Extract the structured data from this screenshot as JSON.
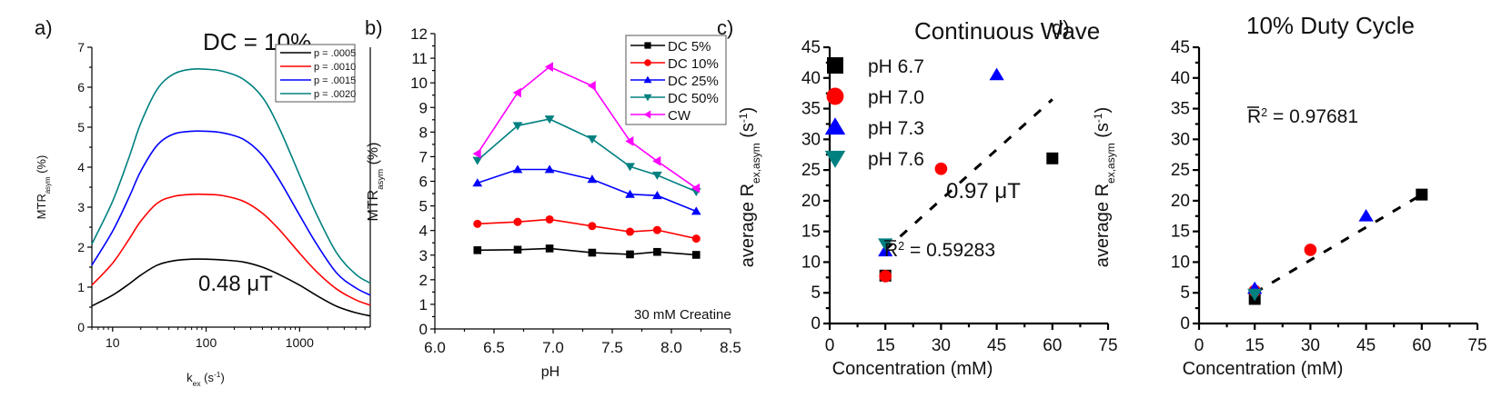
{
  "chart_data": [
    {
      "id": "a",
      "panel_label": "a)",
      "type": "line",
      "title": "DC = 10%",
      "xlabel": "k_ex (s^-1)",
      "xlabel_main": "k",
      "xlabel_sub": "ex",
      "xlabel_rest": " (s",
      "xlabel_sup": "-1",
      "xlabel_end": ")",
      "ylabel_main": "MTR",
      "ylabel_sub": "asym",
      "ylabel_rest": " (%)",
      "xscale": "log",
      "xlim": [
        6,
        5700
      ],
      "ylim": [
        0,
        7
      ],
      "xticks": [
        10,
        100,
        1000
      ],
      "xtick_labels": [
        "10",
        "100",
        "1000"
      ],
      "yticks": [
        0,
        1,
        2,
        3,
        4,
        5,
        6,
        7
      ],
      "ytick_labels": [
        "0",
        "1",
        "2",
        "3",
        "4",
        "5",
        "6",
        "7"
      ],
      "annotation": "0.48 μT",
      "legend_position": "top-right",
      "x": [
        6,
        10,
        15,
        20,
        30,
        45,
        70,
        100,
        150,
        250,
        400,
        600,
        1000,
        1500,
        2500,
        4000,
        5700
      ],
      "series": [
        {
          "name": "p = .0005",
          "color": "#000000",
          "values": [
            0.53,
            0.8,
            1.08,
            1.3,
            1.55,
            1.66,
            1.7,
            1.7,
            1.68,
            1.63,
            1.5,
            1.32,
            1.05,
            0.8,
            0.52,
            0.36,
            0.28
          ]
        },
        {
          "name": "p = .0010",
          "color": "#ff0000",
          "values": [
            1.05,
            1.6,
            2.2,
            2.65,
            3.1,
            3.27,
            3.32,
            3.32,
            3.29,
            3.15,
            2.85,
            2.45,
            1.85,
            1.4,
            0.95,
            0.68,
            0.55
          ]
        },
        {
          "name": "p = .0015",
          "color": "#0000ff",
          "values": [
            1.55,
            2.4,
            3.25,
            3.9,
            4.55,
            4.83,
            4.9,
            4.9,
            4.86,
            4.7,
            4.3,
            3.7,
            2.8,
            2.1,
            1.35,
            0.98,
            0.8
          ]
        },
        {
          "name": "p = .0020",
          "color": "#008080",
          "values": [
            2.08,
            3.15,
            4.25,
            5.1,
            5.95,
            6.33,
            6.45,
            6.45,
            6.4,
            6.2,
            5.75,
            5.0,
            3.8,
            2.85,
            1.85,
            1.32,
            1.1
          ]
        }
      ]
    },
    {
      "id": "b",
      "panel_label": "b)",
      "type": "line",
      "title": "",
      "xlabel": "pH",
      "ylabel_main": "MTR",
      "ylabel_sub": "asym",
      "ylabel_rest": " (%)",
      "xlim": [
        6.0,
        8.5
      ],
      "ylim": [
        0,
        12
      ],
      "xticks": [
        6.0,
        6.5,
        7.0,
        7.5,
        8.0,
        8.5
      ],
      "xtick_labels": [
        "6.0",
        "6.5",
        "7.0",
        "7.5",
        "8.0",
        "8.5"
      ],
      "yticks": [
        0,
        1,
        2,
        3,
        4,
        5,
        6,
        7,
        8,
        9,
        10,
        11,
        12
      ],
      "ytick_labels": [
        "0",
        "1",
        "2",
        "3",
        "4",
        "5",
        "6",
        "7",
        "8",
        "9",
        "10",
        "11",
        "12"
      ],
      "annotation": "30 mM Creatine",
      "legend_position": "top-right",
      "x": [
        6.36,
        6.7,
        6.97,
        7.33,
        7.65,
        7.88,
        8.21
      ],
      "series": [
        {
          "name": "DC 5%",
          "color": "#000000",
          "marker": "square",
          "values": [
            3.2,
            3.22,
            3.27,
            3.1,
            3.03,
            3.13,
            3.01
          ]
        },
        {
          "name": "DC 10%",
          "color": "#ff0000",
          "marker": "circle",
          "values": [
            4.27,
            4.35,
            4.45,
            4.18,
            3.95,
            4.02,
            3.67
          ]
        },
        {
          "name": "DC 25%",
          "color": "#0000ff",
          "marker": "triangle-up",
          "values": [
            5.93,
            6.48,
            6.48,
            6.08,
            5.47,
            5.42,
            4.78
          ]
        },
        {
          "name": "DC 50%",
          "color": "#008080",
          "marker": "triangle-down",
          "values": [
            6.85,
            8.26,
            8.53,
            7.72,
            6.6,
            6.25,
            5.58
          ]
        },
        {
          "name": "CW",
          "color": "#ff00ff",
          "marker": "triangle-left",
          "values": [
            7.12,
            9.6,
            10.65,
            9.88,
            7.63,
            6.82,
            5.72
          ]
        }
      ]
    },
    {
      "id": "c",
      "panel_label": "c)",
      "type": "scatter",
      "title": "Continuous Wave",
      "xlabel": "Concentration (mM)",
      "ylabel_main": "average R",
      "ylabel_sub": "ex,asym",
      "ylabel_rest": " (s",
      "ylabel_sup": "-1",
      "ylabel_end": ")",
      "xlim": [
        0,
        75
      ],
      "ylim": [
        0,
        45
      ],
      "xticks": [
        0,
        15,
        30,
        45,
        60,
        75
      ],
      "xtick_labels": [
        "0",
        "15",
        "30",
        "45",
        "60",
        "75"
      ],
      "yticks": [
        0,
        5,
        10,
        15,
        20,
        25,
        30,
        35,
        40,
        45
      ],
      "ytick_labels": [
        "0",
        "5",
        "10",
        "15",
        "20",
        "25",
        "30",
        "35",
        "40",
        "45"
      ],
      "annotation": "0.97 μT",
      "r2_label": "R",
      "r2_text": " = 0.59283",
      "legend_position": "top-left",
      "fit_line": {
        "x": [
          15,
          60
        ],
        "y": [
          12,
          36.5
        ],
        "style": "dashed"
      },
      "series": [
        {
          "name": "pH 6.7",
          "color": "#000000",
          "marker": "square",
          "points": [
            [
              15,
              7.8
            ],
            [
              60,
              26.9
            ]
          ]
        },
        {
          "name": "pH 7.0",
          "color": "#ff0000",
          "marker": "circle",
          "points": [
            [
              15,
              7.7
            ],
            [
              30,
              25.2
            ]
          ]
        },
        {
          "name": "pH 7.3",
          "color": "#0000ff",
          "marker": "triangle-up",
          "points": [
            [
              15,
              11.8
            ],
            [
              45,
              40.5
            ]
          ]
        },
        {
          "name": "pH 7.6",
          "color": "#008080",
          "marker": "triangle-down",
          "points": [
            [
              15,
              13.0
            ]
          ]
        }
      ]
    },
    {
      "id": "d",
      "panel_label": "d)",
      "type": "scatter",
      "title": "10% Duty Cycle",
      "xlabel": "Concentration (mM)",
      "ylabel_main": "average R",
      "ylabel_sub": "ex,asym",
      "ylabel_rest": " (s",
      "ylabel_sup": "-1",
      "ylabel_end": ")",
      "xlim": [
        0,
        75
      ],
      "ylim": [
        0,
        45
      ],
      "xticks": [
        0,
        15,
        30,
        45,
        60,
        75
      ],
      "xtick_labels": [
        "0",
        "15",
        "30",
        "45",
        "60",
        "75"
      ],
      "yticks": [
        0,
        5,
        10,
        15,
        20,
        25,
        30,
        35,
        40,
        45
      ],
      "ytick_labels": [
        "0",
        "5",
        "10",
        "15",
        "20",
        "25",
        "30",
        "35",
        "40",
        "45"
      ],
      "r2_label": "R",
      "r2_text": " = 0.97681",
      "fit_line": {
        "x": [
          15,
          60
        ],
        "y": [
          5.0,
          21.0
        ],
        "style": "dashed"
      },
      "series": [
        {
          "name": "pH 6.7",
          "color": "#000000",
          "marker": "square",
          "points": [
            [
              15,
              4.0
            ],
            [
              60,
              21.0
            ]
          ]
        },
        {
          "name": "pH 7.0",
          "color": "#ff0000",
          "marker": "circle",
          "points": [
            [
              15,
              5.3
            ],
            [
              30,
              12.0
            ]
          ]
        },
        {
          "name": "pH 7.3",
          "color": "#0000ff",
          "marker": "triangle-up",
          "points": [
            [
              15,
              5.7
            ],
            [
              45,
              17.5
            ]
          ]
        },
        {
          "name": "pH 7.6",
          "color": "#008080",
          "marker": "triangle-down",
          "points": [
            [
              15,
              4.8
            ]
          ]
        }
      ]
    }
  ]
}
